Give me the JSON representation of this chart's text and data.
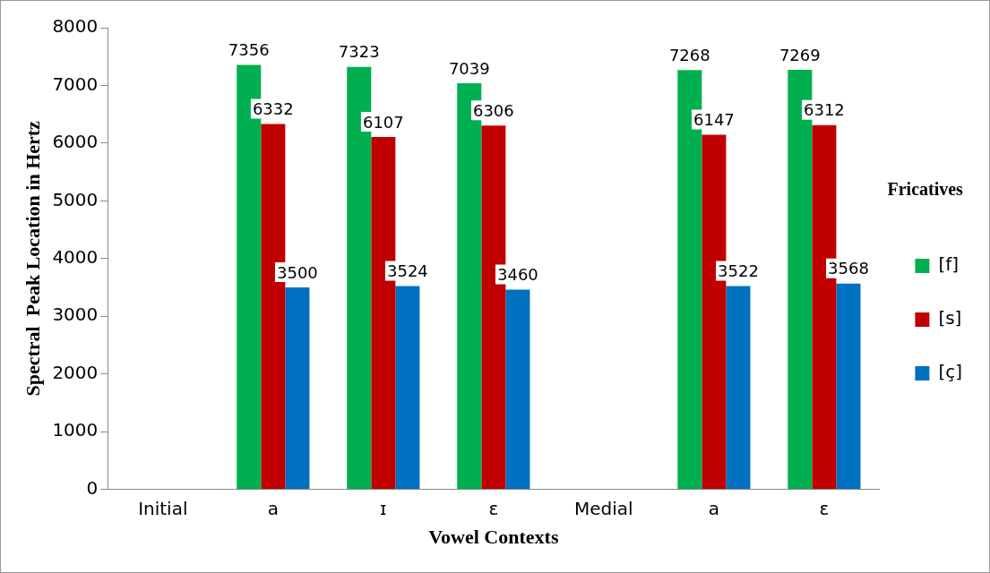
{
  "chart_data": {
    "type": "bar",
    "xlabel": "Vowel Contexts",
    "ylabel": "Spectral  Peak Location in Hertz",
    "legend_title": "Fricatives",
    "categories": [
      "Initial",
      "a",
      "ɪ",
      "ɛ",
      "Medial",
      "a",
      "ɛ"
    ],
    "series": [
      {
        "name": "[f]",
        "color": "#00b050",
        "values": [
          null,
          7356,
          7323,
          7039,
          null,
          7268,
          7269
        ]
      },
      {
        "name": "[s]",
        "color": "#c00000",
        "values": [
          null,
          6332,
          6107,
          6306,
          null,
          6147,
          6312
        ]
      },
      {
        "name": "[ç]",
        "color": "#0070c0",
        "values": [
          null,
          3500,
          3524,
          3460,
          null,
          3522,
          3568
        ]
      }
    ],
    "ylim": [
      0,
      8000
    ],
    "yticks": [
      0,
      1000,
      2000,
      3000,
      4000,
      5000,
      6000,
      7000,
      8000
    ],
    "grid": false,
    "legend": "right",
    "data_labels": true
  }
}
